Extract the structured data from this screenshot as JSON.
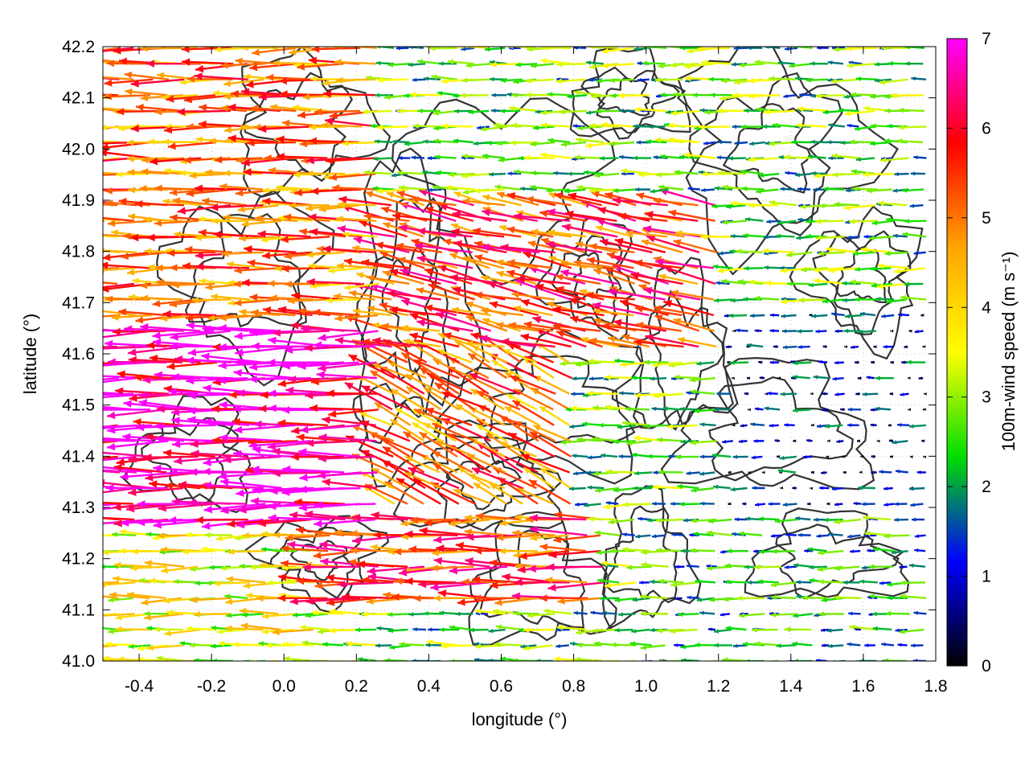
{
  "chart_data": {
    "type": "vector-field",
    "title": "",
    "xlabel": "longitude (°)",
    "ylabel": "latitude (°)",
    "xlim": [
      -0.5,
      1.8
    ],
    "ylim": [
      41.0,
      42.2
    ],
    "xticks": [
      -0.4,
      -0.2,
      0.0,
      0.2,
      0.4,
      0.6,
      0.8,
      1.0,
      1.2,
      1.4,
      1.6,
      1.8
    ],
    "xtick_labels": [
      "-0.4",
      "-0.2",
      "0.0",
      "0.2",
      "0.4",
      "0.6",
      "0.8",
      "1.0",
      "1.2",
      "1.4",
      "1.6",
      "1.8"
    ],
    "yticks": [
      41.0,
      41.1,
      41.2,
      41.3,
      41.4,
      41.5,
      41.6,
      41.7,
      41.8,
      41.9,
      42.0,
      42.1,
      42.2
    ],
    "ytick_labels": [
      "41.0",
      "41.1",
      "41.2",
      "41.3",
      "41.4",
      "41.5",
      "41.6",
      "41.7",
      "41.8",
      "41.9",
      "42.0",
      "42.1",
      "42.2"
    ],
    "grid": true,
    "colorbar": {
      "label": "100m-wind speed (m s⁻¹)",
      "range": [
        0,
        7
      ],
      "ticks": [
        0,
        1,
        2,
        3,
        4,
        5,
        6,
        7
      ],
      "tick_labels": [
        "0",
        "1",
        "2",
        "3",
        "4",
        "5",
        "6",
        "7"
      ],
      "colormap": [
        "#000000",
        "#0000ff",
        "#00dd00",
        "#ffff00",
        "#ffa500",
        "#ff0000",
        "#ff00ff"
      ],
      "position": "right"
    },
    "vector_speed_regions": [
      {
        "lat": [
          41.25,
          41.65
        ],
        "lon": [
          -0.5,
          0.3
        ],
        "speed": 6.8,
        "direction": "west"
      },
      {
        "lat": [
          41.65,
          42.2
        ],
        "lon": [
          -0.5,
          0.3
        ],
        "speed": 5.0,
        "direction": "west"
      },
      {
        "lat": [
          41.0,
          41.25
        ],
        "lon": [
          -0.5,
          0.1
        ],
        "speed": 3.5,
        "direction": "west"
      },
      {
        "lat": [
          41.1,
          41.3
        ],
        "lon": [
          0.1,
          0.9
        ],
        "speed": 5.5,
        "direction": "west"
      },
      {
        "lat": [
          41.3,
          41.6
        ],
        "lon": [
          0.3,
          0.8
        ],
        "speed": 5.0,
        "direction": "northwest"
      },
      {
        "lat": [
          41.6,
          41.9
        ],
        "lon": [
          0.3,
          1.2
        ],
        "speed": 5.5,
        "direction": "west-northwest"
      },
      {
        "lat": [
          41.9,
          42.2
        ],
        "lon": [
          0.3,
          1.0
        ],
        "speed": 2.5,
        "direction": "west"
      },
      {
        "lat": [
          41.3,
          41.7
        ],
        "lon": [
          1.2,
          1.8
        ],
        "speed": 1.0,
        "direction": "west"
      },
      {
        "lat": [
          41.0,
          41.3
        ],
        "lon": [
          1.0,
          1.8
        ],
        "speed": 2.0,
        "direction": "west"
      },
      {
        "lat": [
          41.7,
          42.2
        ],
        "lon": [
          1.2,
          1.8
        ],
        "speed": 2.5,
        "direction": "west"
      }
    ],
    "contours": "terrain elevation isolines (unlabeled)"
  }
}
